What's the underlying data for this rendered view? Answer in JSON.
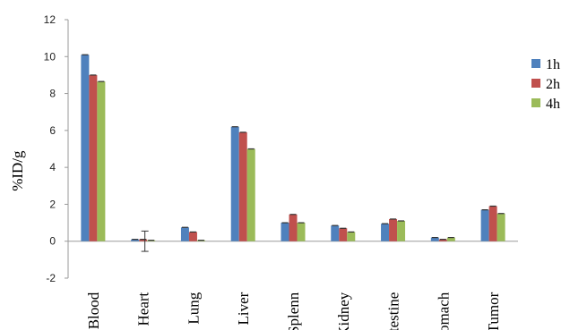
{
  "chart_data": {
    "type": "bar",
    "title": "",
    "xlabel": "",
    "ylabel": "%ID/g",
    "ylim": [
      -2,
      12
    ],
    "yticks": [
      -2,
      0,
      2,
      4,
      6,
      8,
      10,
      12
    ],
    "grid": false,
    "legend_position": "right",
    "categories": [
      "Blood",
      "Heart",
      "Lung",
      "Liver",
      "Splenn",
      "Kidney",
      "Intestine",
      "Stomach",
      "Tumor"
    ],
    "series": [
      {
        "name": "1h",
        "color": "#4F81BD",
        "values": [
          10.1,
          0.1,
          0.75,
          6.2,
          1.0,
          0.85,
          0.95,
          0.2,
          1.7
        ]
      },
      {
        "name": "2h",
        "color": "#C0504D",
        "values": [
          9.0,
          0.1,
          0.5,
          5.9,
          1.45,
          0.7,
          1.2,
          0.1,
          1.9
        ]
      },
      {
        "name": "4h",
        "color": "#9BBB59",
        "values": [
          8.65,
          0.05,
          0.05,
          5.0,
          1.0,
          0.5,
          1.1,
          0.2,
          1.5
        ]
      }
    ]
  }
}
